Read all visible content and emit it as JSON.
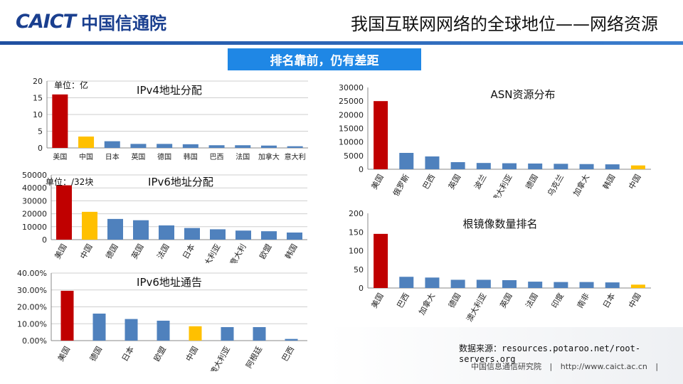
{
  "header": {
    "logo_en": "CAICT",
    "logo_cn": "中国信通院",
    "title": "我国互联网网络的全球地位——网络资源"
  },
  "banner": {
    "text": "排名靠前，仍有差距"
  },
  "footer": {
    "source": "数据来源：resources.potaroo.net/root-servers.org",
    "org": "中国信息通信研究院",
    "sep": "|",
    "url": "http://www.caict.ac.cn",
    "sep2": "|"
  },
  "colors": {
    "blue": "#4f81bd",
    "red": "#c00000",
    "gold": "#ffc000",
    "banner": "#1f87e5"
  },
  "chart_data": [
    {
      "id": "ipv4",
      "type": "bar",
      "title": "IPv4地址分配",
      "unit_label": "单位：亿",
      "categories": [
        "美国",
        "中国",
        "日本",
        "英国",
        "德国",
        "韩国",
        "巴西",
        "法国",
        "加拿大",
        "意大利"
      ],
      "values": [
        16,
        3.4,
        2.0,
        1.2,
        1.2,
        1.1,
        0.8,
        0.8,
        0.7,
        0.5
      ],
      "highlight": {
        "0": "red",
        "1": "gold"
      },
      "ylim": [
        0,
        20
      ],
      "yticks": [
        0,
        5,
        10,
        15,
        20
      ],
      "ytick_labels": [
        "0",
        "5",
        "10",
        "15",
        "20"
      ],
      "rotate_labels": false,
      "grid": true
    },
    {
      "id": "ipv6",
      "type": "bar",
      "title": "IPv6地址分配",
      "unit_label": "单位：/32块",
      "categories": [
        "美国",
        "中国",
        "德国",
        "英国",
        "法国",
        "日本",
        "大利亚",
        "意大利",
        "欧盟",
        "韩国"
      ],
      "values": [
        42000,
        21500,
        16000,
        15000,
        11000,
        9000,
        8000,
        7000,
        6500,
        5500
      ],
      "highlight": {
        "0": "red",
        "1": "gold"
      },
      "ylim": [
        0,
        50000
      ],
      "yticks": [
        0,
        10000,
        20000,
        30000,
        40000,
        50000
      ],
      "ytick_labels": [
        "0",
        "10000",
        "20000",
        "30000",
        "40000",
        "50000"
      ],
      "rotate_labels": true,
      "grid": true
    },
    {
      "id": "ipv6adv",
      "type": "bar",
      "title": "IPv6地址通告",
      "categories": [
        "美国",
        "德国",
        "日本",
        "欧盟",
        "中国",
        "澳大利亚",
        "阿根廷",
        "巴西"
      ],
      "values": [
        29.5,
        16,
        12.8,
        11.8,
        8.5,
        8.0,
        8.0,
        1.0
      ],
      "highlight": {
        "0": "red",
        "4": "gold"
      },
      "ylim": [
        0,
        40
      ],
      "yticks": [
        0,
        10,
        20,
        30,
        40
      ],
      "ytick_labels": [
        "0.00%",
        "10.00%",
        "20.00%",
        "30.00%",
        "40.00%"
      ],
      "rotate_labels": true,
      "grid": true
    },
    {
      "id": "asn",
      "type": "bar",
      "title": "ASN资源分布",
      "categories": [
        "美国",
        "俄罗斯",
        "巴西",
        "英国",
        "波兰",
        "澳大利亚",
        "德国",
        "乌克兰",
        "加拿大",
        "韩国",
        "中国"
      ],
      "values": [
        25000,
        6000,
        4700,
        2600,
        2300,
        2200,
        2100,
        2000,
        1900,
        1800,
        1400
      ],
      "highlight": {
        "0": "red",
        "10": "gold"
      },
      "ylim": [
        0,
        30000
      ],
      "yticks": [
        0,
        5000,
        10000,
        15000,
        20000,
        25000,
        30000
      ],
      "ytick_labels": [
        "0",
        "5000",
        "10000",
        "15000",
        "20000",
        "25000",
        "30000"
      ],
      "rotate_labels": true,
      "grid": false
    },
    {
      "id": "root",
      "type": "bar",
      "title": "根镜像数量排名",
      "categories": [
        "美国",
        "巴西",
        "加拿大",
        "德国",
        "澳大利亚",
        "英国",
        "法国",
        "印度",
        "南非",
        "日本",
        "中国"
      ],
      "values": [
        145,
        30,
        28,
        22,
        22,
        21,
        17,
        16,
        16,
        15,
        9
      ],
      "highlight": {
        "0": "red",
        "10": "gold"
      },
      "ylim": [
        0,
        200
      ],
      "yticks": [
        0,
        50,
        100,
        150,
        200
      ],
      "ytick_labels": [
        "0",
        "50",
        "100",
        "150",
        "200"
      ],
      "rotate_labels": true,
      "grid": false
    }
  ]
}
